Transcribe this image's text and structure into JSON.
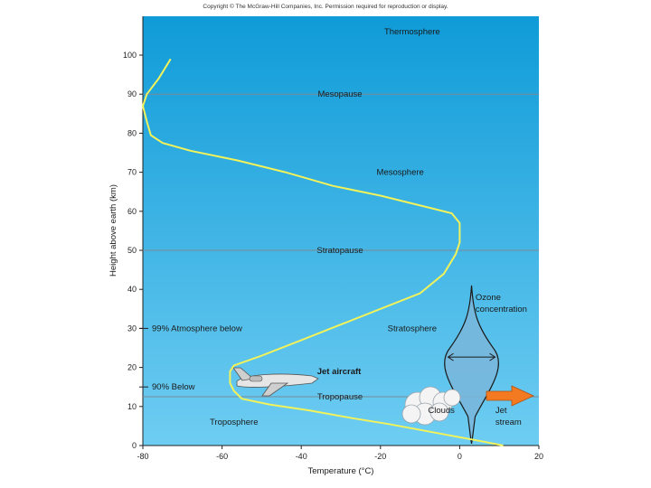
{
  "copyright": "Copyright © The McGraw-Hill Companies, Inc. Permission required for reproduction or display.",
  "colors": {
    "sky_top": "#0f9bd8",
    "sky_bottom": "#6fcdf2",
    "curve": "#f2f25a",
    "layer_line": "#7a8a96",
    "ozone_fill": "#7ab6da",
    "jet_stream": "#f47a22"
  },
  "icons": [
    "jet-aircraft-icon",
    "cloud-icon",
    "jet-stream-arrow-icon"
  ],
  "chart_data": {
    "type": "line",
    "xlabel": "Temperature (°C)",
    "ylabel": "Height above earth (km)",
    "xlim": [
      -80,
      20
    ],
    "ylim": [
      0,
      105
    ],
    "x_ticks": [
      -80,
      -60,
      -40,
      -20,
      0,
      20
    ],
    "y_ticks": [
      0,
      10,
      20,
      30,
      40,
      50,
      60,
      70,
      80,
      90,
      100
    ],
    "series": [
      {
        "x": [
          11,
          6,
          -2,
          -10,
          -18,
          -27,
          -38,
          -48,
          -55,
          -57,
          -58,
          -58,
          -57,
          -50,
          -40,
          -30,
          -20,
          -10,
          -4,
          -1,
          0,
          0,
          -2,
          -8,
          -20,
          -32,
          -44,
          -56,
          -68,
          -75,
          -78,
          -79,
          -80,
          -79,
          -76,
          -73
        ],
        "y": [
          0,
          1,
          2.5,
          4,
          5.5,
          7,
          9,
          10.5,
          12,
          14,
          16,
          19,
          20.5,
          23,
          27,
          31,
          35,
          39,
          44,
          49,
          52,
          57,
          59.5,
          61,
          64,
          66.5,
          70,
          73,
          75.5,
          77.5,
          79.5,
          83,
          87,
          90,
          94,
          99
        ]
      }
    ],
    "layers": [
      {
        "name": "Tropopause",
        "y": 12.5
      },
      {
        "name": "Stratopause",
        "y": 50
      },
      {
        "name": "Mesopause",
        "y": 90
      }
    ],
    "region_labels": [
      {
        "text": "Thermosphere",
        "x": -12,
        "y": 106
      },
      {
        "text": "Mesosphere",
        "x": -15,
        "y": 70
      },
      {
        "text": "Stratosphere",
        "x": -12,
        "y": 30
      },
      {
        "text": "Troposphere",
        "x": -57,
        "y": 6
      }
    ],
    "annotations": [
      {
        "text": "99% Atmosphere below",
        "y": 30
      },
      {
        "text": "90% Below",
        "y": 15
      },
      {
        "text": "Jet aircraft",
        "x": -36,
        "y": 19
      },
      {
        "text": "Clouds",
        "x": -8,
        "y": 9
      },
      {
        "text": "Ozone",
        "x": 4,
        "y": 38
      },
      {
        "text": "concentration",
        "x": 4,
        "y": 35
      },
      {
        "text": "Jet",
        "x": 9,
        "y": 9
      },
      {
        "text": "stream",
        "x": 9,
        "y": 6
      }
    ]
  }
}
